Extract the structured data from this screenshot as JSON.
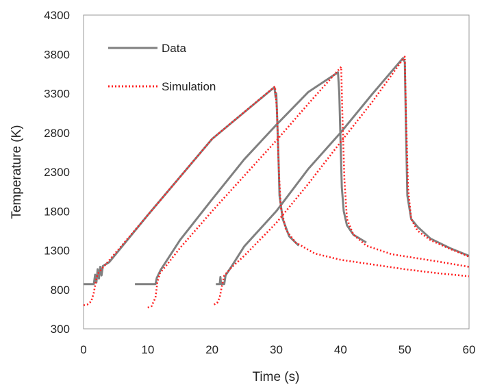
{
  "chart_data": {
    "type": "line",
    "title": "",
    "xlabel": "Time (s)",
    "ylabel": "Temperature (K)",
    "xlim": [
      0,
      60
    ],
    "ylim": [
      300,
      4300
    ],
    "xticks": [
      "0",
      "10",
      "20",
      "30",
      "40",
      "50",
      "60"
    ],
    "yticks": [
      "300",
      "800",
      "1300",
      "1800",
      "2300",
      "2800",
      "3300",
      "3800",
      "4300"
    ],
    "grid": false,
    "legend_position": "top-left",
    "colors": {
      "data": "#808080",
      "simulation": "#ff2020"
    },
    "series": [
      {
        "name": "Data",
        "style": "solid",
        "segments": [
          [
            [
              0,
              870
            ],
            [
              1.6,
              870
            ],
            [
              1.8,
              990
            ],
            [
              2.0,
              890
            ],
            [
              2.2,
              1060
            ],
            [
              2.4,
              940
            ],
            [
              2.6,
              1090
            ],
            [
              2.8,
              980
            ],
            [
              3.0,
              1100
            ],
            [
              4,
              1150
            ],
            [
              10,
              1750
            ],
            [
              20,
              2720
            ],
            [
              29.7,
              3380
            ],
            [
              29.9,
              3250
            ],
            [
              30.0,
              3300
            ],
            [
              30.1,
              3080
            ],
            [
              30.3,
              2600
            ],
            [
              30.5,
              2000
            ],
            [
              31,
              1700
            ],
            [
              32,
              1480
            ],
            [
              33.5,
              1360
            ]
          ],
          [
            [
              8,
              870
            ],
            [
              11.2,
              870
            ],
            [
              11.4,
              950
            ],
            [
              12,
              1050
            ],
            [
              15,
              1430
            ],
            [
              20,
              1950
            ],
            [
              25,
              2460
            ],
            [
              30,
              2900
            ],
            [
              35,
              3320
            ],
            [
              39.6,
              3570
            ],
            [
              39.8,
              3300
            ],
            [
              40.0,
              2700
            ],
            [
              40.2,
              2100
            ],
            [
              40.5,
              1800
            ],
            [
              41,
              1620
            ],
            [
              42,
              1500
            ],
            [
              44,
              1400
            ]
          ],
          [
            [
              20.6,
              870
            ],
            [
              21.2,
              870
            ],
            [
              21.3,
              960
            ],
            [
              21.4,
              870
            ],
            [
              21.9,
              870
            ],
            [
              22.1,
              980
            ],
            [
              23,
              1090
            ],
            [
              25,
              1350
            ],
            [
              30,
              1800
            ],
            [
              35,
              2340
            ],
            [
              40,
              2800
            ],
            [
              45,
              3300
            ],
            [
              49.7,
              3750
            ],
            [
              50.0,
              3700
            ],
            [
              50.2,
              2800
            ],
            [
              50.4,
              2000
            ],
            [
              51,
              1700
            ],
            [
              52,
              1600
            ],
            [
              54,
              1450
            ],
            [
              57,
              1330
            ],
            [
              60,
              1230
            ]
          ]
        ]
      },
      {
        "name": "Simulation",
        "style": "dotted",
        "segments": [
          [
            [
              0,
              600
            ],
            [
              0.6,
              610
            ],
            [
              1.2,
              650
            ],
            [
              1.6,
              760
            ],
            [
              1.9,
              900
            ],
            [
              2.2,
              1000
            ],
            [
              3,
              1080
            ],
            [
              5,
              1270
            ],
            [
              10,
              1750
            ],
            [
              20,
              2720
            ],
            [
              29.8,
              3390
            ],
            [
              30.1,
              3100
            ],
            [
              30.4,
              2300
            ],
            [
              30.7,
              1850
            ],
            [
              31.5,
              1560
            ],
            [
              33,
              1400
            ],
            [
              36,
              1260
            ],
            [
              40,
              1180
            ],
            [
              45,
              1120
            ],
            [
              50,
              1060
            ],
            [
              55,
              1010
            ],
            [
              60,
              970
            ]
          ],
          [
            [
              10,
              570
            ],
            [
              10.6,
              590
            ],
            [
              11.2,
              700
            ],
            [
              11.5,
              900
            ],
            [
              11.9,
              1010
            ],
            [
              13,
              1120
            ],
            [
              15,
              1330
            ],
            [
              20,
              1800
            ],
            [
              25,
              2250
            ],
            [
              30,
              2700
            ],
            [
              35,
              3170
            ],
            [
              40.1,
              3640
            ],
            [
              40.3,
              3000
            ],
            [
              40.6,
              2200
            ],
            [
              41,
              1700
            ],
            [
              42,
              1500
            ],
            [
              44,
              1360
            ],
            [
              48,
              1250
            ],
            [
              55,
              1160
            ],
            [
              60,
              1090
            ]
          ],
          [
            [
              20.3,
              610
            ],
            [
              20.8,
              630
            ],
            [
              21.2,
              700
            ],
            [
              21.5,
              830
            ],
            [
              21.9,
              980
            ],
            [
              23,
              1080
            ],
            [
              25,
              1230
            ],
            [
              30,
              1650
            ],
            [
              35,
              2150
            ],
            [
              40,
              2680
            ],
            [
              45,
              3200
            ],
            [
              50.0,
              3770
            ],
            [
              50.2,
              3000
            ],
            [
              50.5,
              2100
            ],
            [
              51,
              1700
            ],
            [
              52,
              1550
            ],
            [
              54,
              1430
            ],
            [
              57,
              1320
            ],
            [
              60,
              1220
            ]
          ]
        ]
      }
    ]
  }
}
